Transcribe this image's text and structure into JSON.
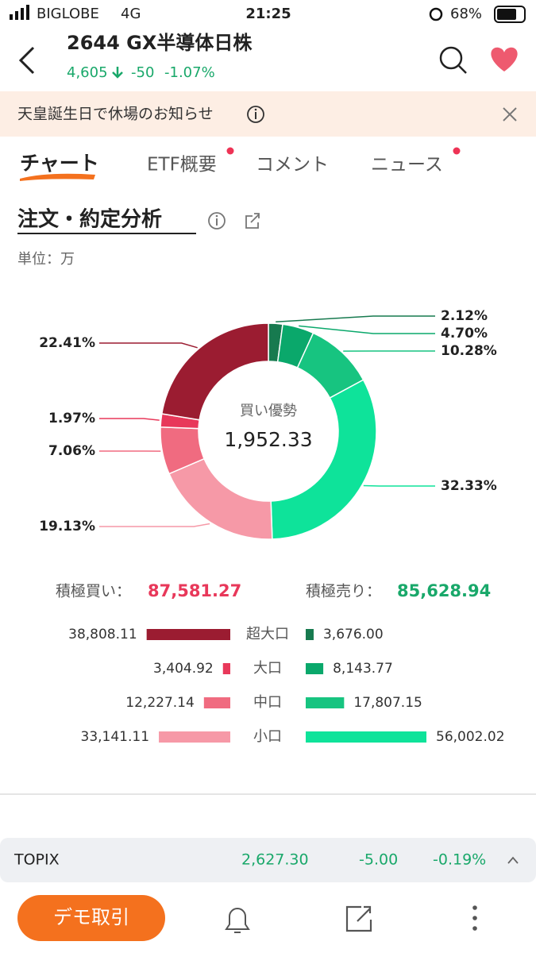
{
  "status_bar": {
    "carrier": "BIGLOBE",
    "network": "4G",
    "time": "21:25",
    "battery": "68%"
  },
  "header": {
    "title": "2644  GX半導体日株",
    "price": "4,605",
    "change": "-50",
    "change_pct": "-1.07%"
  },
  "notice": "天皇誕生日で休場のお知らせ",
  "tabs": [
    "チャート",
    "ETF概要",
    "コメント",
    "ニュース"
  ],
  "section": {
    "title": "注文・約定分析",
    "unit": "単位：万"
  },
  "chart_data": {
    "type": "pie",
    "center_label": "買い優勢",
    "center_value": "1,952.33",
    "values": [
      2.12,
      4.7,
      10.28,
      32.33,
      19.13,
      7.06,
      1.97,
      22.41
    ],
    "value_labels": [
      "2.12%",
      "4.70%",
      "10.28%",
      "32.33%",
      "19.13%",
      "7.06%",
      "1.97%",
      "22.41%"
    ],
    "colors": [
      "#177a4f",
      "#0aa86b",
      "#17c480",
      "#0ee39a",
      "#f699a7",
      "#f06b80",
      "#e8385a",
      "#9b1c31"
    ]
  },
  "totals": {
    "buy_label": "積極買い：",
    "buy_value": "87,581.27",
    "sell_label": "積極売り：",
    "sell_value": "85,628.94"
  },
  "breakdown": {
    "categories": [
      "超大口",
      "大口",
      "中口",
      "小口"
    ],
    "buy": {
      "values": [
        38808.11,
        3404.92,
        12227.14,
        33141.11
      ],
      "value_labels": [
        "38,808.11",
        "3,404.92",
        "12,227.14",
        "33,141.11"
      ],
      "colors": [
        "#9b1c31",
        "#e8385a",
        "#f06b80",
        "#f699a7"
      ]
    },
    "sell": {
      "values": [
        3676.0,
        8143.77,
        17807.15,
        56002.02
      ],
      "value_labels": [
        "3,676.00",
        "8,143.77",
        "17,807.15",
        "56,002.02"
      ],
      "colors": [
        "#177a4f",
        "#0aa86b",
        "#17c480",
        "#0ee39a"
      ]
    }
  },
  "ticker": {
    "name": "TOPIX",
    "price": "2,627.30",
    "change": "-5.00",
    "change_pct": "-0.19%"
  },
  "bottom_bar": {
    "button": "デモ取引"
  }
}
